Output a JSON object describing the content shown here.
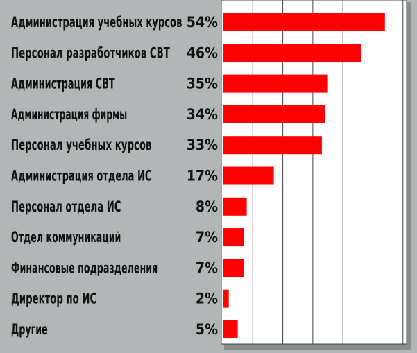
{
  "chart_data": {
    "type": "bar",
    "orientation": "horizontal",
    "categories": [
      "Администрация учебных курсов",
      "Персонал разработчиков СВТ",
      "Администрация СВТ",
      "Администрация фирмы",
      "Персонал учебных курсов",
      "Администрация отдела ИС",
      "Персонал отдела ИС",
      "Отдел коммуникаций",
      "Финансовые подразделения",
      "Директор по ИС",
      "Другие"
    ],
    "values": [
      54,
      46,
      35,
      34,
      33,
      17,
      8,
      7,
      7,
      2,
      5
    ],
    "value_labels": [
      "54%",
      "46%",
      "35%",
      "34%",
      "33%",
      "17%",
      "8%",
      "7%",
      "7%",
      "2%",
      "5%"
    ],
    "title": "",
    "xlabel": "",
    "ylabel": "",
    "xlim": [
      0,
      60
    ],
    "grid": true,
    "legend": "none",
    "colors": {
      "bar": "#ff0000",
      "background": "#b3b6b6",
      "plot_area": "#ffffff",
      "grid": "#444444",
      "text": "#111111"
    }
  }
}
